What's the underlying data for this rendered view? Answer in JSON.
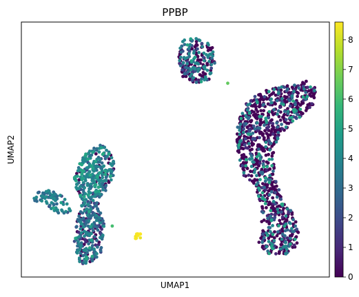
{
  "chart_data": {
    "type": "scatter",
    "title": "PPBP",
    "xlabel": "UMAP1",
    "ylabel": "UMAP2",
    "x_ticks": false,
    "y_ticks": false,
    "grid": false,
    "xlim": [
      0,
      1
    ],
    "ylim": [
      0,
      1
    ],
    "colormap": "viridis",
    "colorbar": {
      "min": 0,
      "max": 8.6,
      "ticks": [
        "0",
        "1",
        "2",
        "3",
        "4",
        "5",
        "6",
        "7",
        "8"
      ],
      "placement": "right"
    },
    "clusters": [
      {
        "description": "large cluster right, mostly zero expression",
        "outline": [
          [
            0.86,
            0.75
          ],
          [
            0.93,
            0.77
          ],
          [
            0.96,
            0.74
          ],
          [
            0.95,
            0.68
          ],
          [
            0.9,
            0.62
          ],
          [
            0.84,
            0.56
          ],
          [
            0.82,
            0.5
          ],
          [
            0.82,
            0.43
          ],
          [
            0.84,
            0.33
          ],
          [
            0.88,
            0.25
          ],
          [
            0.9,
            0.2
          ],
          [
            0.9,
            0.12
          ],
          [
            0.86,
            0.09
          ],
          [
            0.8,
            0.09
          ],
          [
            0.77,
            0.13
          ],
          [
            0.78,
            0.2
          ],
          [
            0.78,
            0.28
          ],
          [
            0.76,
            0.35
          ],
          [
            0.72,
            0.4
          ],
          [
            0.7,
            0.5
          ],
          [
            0.7,
            0.6
          ],
          [
            0.73,
            0.68
          ],
          [
            0.78,
            0.73
          ]
        ],
        "count": 1000,
        "value_mix": [
          [
            0,
            0.65
          ],
          [
            1,
            0.08
          ],
          [
            2,
            0.07
          ],
          [
            3,
            0.07
          ],
          [
            4,
            0.08
          ],
          [
            5,
            0.05
          ]
        ]
      },
      {
        "description": "small cluster top center",
        "outline": [
          [
            0.52,
            0.93
          ],
          [
            0.57,
            0.94
          ],
          [
            0.62,
            0.91
          ],
          [
            0.63,
            0.84
          ],
          [
            0.61,
            0.77
          ],
          [
            0.56,
            0.76
          ],
          [
            0.52,
            0.79
          ],
          [
            0.51,
            0.86
          ]
        ],
        "count": 220,
        "value_mix": [
          [
            0,
            0.5
          ],
          [
            1,
            0.06
          ],
          [
            2,
            0.08
          ],
          [
            3,
            0.1
          ],
          [
            4,
            0.2
          ],
          [
            5,
            0.06
          ]
        ]
      },
      {
        "description": "upper left arm, mixed expression",
        "outline": [
          [
            0.23,
            0.51
          ],
          [
            0.27,
            0.52
          ],
          [
            0.3,
            0.46
          ],
          [
            0.3,
            0.4
          ],
          [
            0.27,
            0.33
          ],
          [
            0.24,
            0.3
          ],
          [
            0.21,
            0.28
          ],
          [
            0.18,
            0.33
          ],
          [
            0.17,
            0.4
          ],
          [
            0.19,
            0.46
          ]
        ],
        "count": 300,
        "value_mix": [
          [
            0,
            0.12
          ],
          [
            2,
            0.1
          ],
          [
            3,
            0.28
          ],
          [
            4,
            0.38
          ],
          [
            5,
            0.12
          ]
        ]
      },
      {
        "description": "left tail",
        "outline": [
          [
            0.04,
            0.33
          ],
          [
            0.09,
            0.34
          ],
          [
            0.14,
            0.32
          ],
          [
            0.16,
            0.26
          ],
          [
            0.13,
            0.24
          ],
          [
            0.08,
            0.28
          ],
          [
            0.04,
            0.3
          ]
        ],
        "count": 80,
        "value_mix": [
          [
            2,
            0.2
          ],
          [
            3,
            0.4
          ],
          [
            4,
            0.35
          ],
          [
            5,
            0.05
          ]
        ]
      },
      {
        "description": "lower left stem",
        "outline": [
          [
            0.2,
            0.3
          ],
          [
            0.25,
            0.3
          ],
          [
            0.27,
            0.22
          ],
          [
            0.26,
            0.1
          ],
          [
            0.23,
            0.05
          ],
          [
            0.19,
            0.05
          ],
          [
            0.17,
            0.12
          ],
          [
            0.18,
            0.22
          ]
        ],
        "count": 260,
        "value_mix": [
          [
            0,
            0.15
          ],
          [
            1,
            0.08
          ],
          [
            2,
            0.2
          ],
          [
            3,
            0.35
          ],
          [
            4,
            0.2
          ],
          [
            5,
            0.02
          ]
        ]
      },
      {
        "description": "small high-expression cluster",
        "outline": [
          [
            0.37,
            0.17
          ],
          [
            0.39,
            0.17
          ],
          [
            0.39,
            0.15
          ],
          [
            0.37,
            0.15
          ]
        ],
        "count": 12,
        "value_mix": [
          [
            8.5,
            1.0
          ]
        ]
      },
      {
        "description": "isolated high points",
        "outline": [],
        "count": 0,
        "points": [
          [
            0.67,
            0.76,
            6.5
          ],
          [
            0.295,
            0.2,
            6.0
          ]
        ],
        "value_mix": []
      }
    ]
  }
}
